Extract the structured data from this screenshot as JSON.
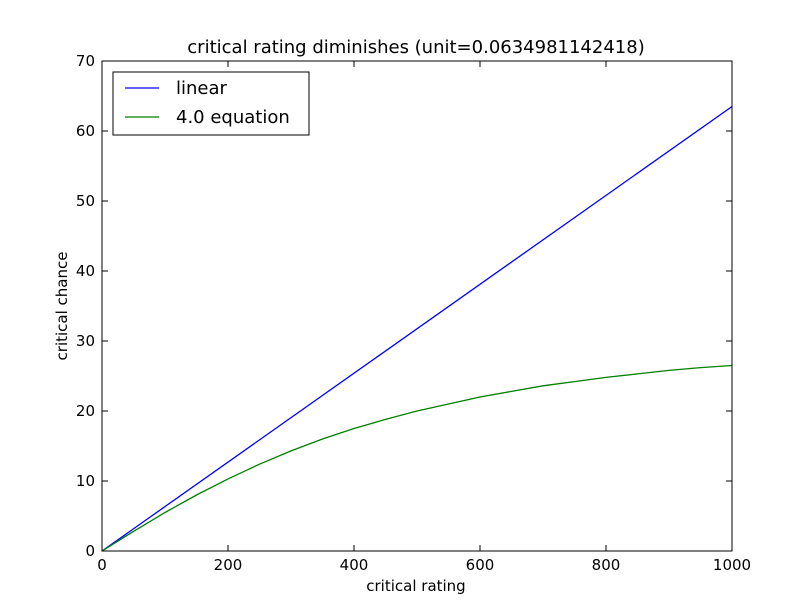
{
  "chart_data": {
    "type": "line",
    "title": "critical rating diminishes (unit=0.0634981142418)",
    "xlabel": "critical rating",
    "ylabel": "critical chance",
    "xlim": [
      0,
      1000
    ],
    "ylim": [
      0,
      70
    ],
    "xticks": [
      0,
      200,
      400,
      600,
      800,
      1000
    ],
    "yticks": [
      0,
      10,
      20,
      30,
      40,
      50,
      60,
      70
    ],
    "legend_position": "top-left",
    "grid": false,
    "series": [
      {
        "name": "linear",
        "color": "#0000ff",
        "x": [
          0,
          1000
        ],
        "y": [
          0,
          63.5
        ]
      },
      {
        "name": "4.0 equation",
        "color": "#008000",
        "x": [
          0,
          50,
          100,
          150,
          200,
          250,
          300,
          350,
          400,
          450,
          500,
          550,
          600,
          650,
          700,
          750,
          800,
          850,
          900,
          950,
          1000
        ],
        "y": [
          0,
          2.8,
          5.5,
          8.0,
          10.3,
          12.4,
          14.3,
          16.0,
          17.5,
          18.8,
          20.0,
          21.0,
          22.0,
          22.8,
          23.6,
          24.2,
          24.8,
          25.3,
          25.8,
          26.2,
          26.5
        ]
      }
    ]
  }
}
